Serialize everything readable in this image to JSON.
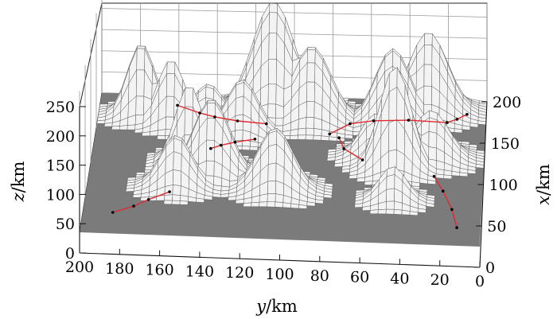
{
  "chart_data": {
    "type": "surface3d",
    "axes": {
      "x": {
        "symbol": "x",
        "unit": "/km",
        "range": [
          0,
          200
        ],
        "ticks": [
          "0",
          "50",
          "100",
          "150",
          "200"
        ]
      },
      "y": {
        "symbol": "y",
        "unit": "/km",
        "range": [
          0,
          200
        ],
        "ticks": [
          "0",
          "20",
          "40",
          "60",
          "80",
          "100",
          "120",
          "140",
          "160",
          "180",
          "200"
        ]
      },
      "z": {
        "symbol": "z",
        "unit": "/km",
        "range": [
          0,
          250
        ],
        "ticks": [
          "0",
          "50",
          "100",
          "150",
          "200",
          "250"
        ]
      }
    },
    "grid": true,
    "surface_color": "#7b7b7b",
    "path_color": "#e0282e",
    "peaks": [
      {
        "x": 170,
        "y": 178,
        "z": 165,
        "sigma": 7
      },
      {
        "x": 160,
        "y": 162,
        "z": 140,
        "sigma": 7
      },
      {
        "x": 162,
        "y": 143,
        "z": 85,
        "sigma": 8
      },
      {
        "x": 150,
        "y": 125,
        "z": 115,
        "sigma": 8
      },
      {
        "x": 180,
        "y": 110,
        "z": 250,
        "sigma": 11
      },
      {
        "x": 170,
        "y": 90,
        "z": 165,
        "sigma": 10
      },
      {
        "x": 170,
        "y": 48,
        "z": 165,
        "sigma": 9
      },
      {
        "x": 185,
        "y": 30,
        "z": 185,
        "sigma": 10
      },
      {
        "x": 120,
        "y": 55,
        "z": 90,
        "sigma": 8
      },
      {
        "x": 120,
        "y": 27,
        "z": 100,
        "sigma": 9
      },
      {
        "x": 105,
        "y": 45,
        "z": 210,
        "sigma": 8
      },
      {
        "x": 105,
        "y": 150,
        "z": 160,
        "sigma": 7
      },
      {
        "x": 90,
        "y": 138,
        "z": 150,
        "sigma": 9
      },
      {
        "x": 70,
        "y": 155,
        "z": 100,
        "sigma": 8
      },
      {
        "x": 70,
        "y": 105,
        "z": 120,
        "sigma": 9
      },
      {
        "x": 60,
        "y": 45,
        "z": 65,
        "sigma": 7
      }
    ],
    "paths": [
      {
        "points": [
          [
            185,
            160
          ],
          [
            175,
            148
          ],
          [
            170,
            140
          ],
          [
            165,
            128
          ],
          [
            162,
            113
          ]
        ]
      },
      {
        "points": [
          [
            140,
            118
          ],
          [
            135,
            128
          ],
          [
            130,
            135
          ],
          [
            125,
            140
          ]
        ]
      },
      {
        "points": [
          [
            150,
            80
          ],
          [
            165,
            70
          ],
          [
            170,
            58
          ],
          [
            172,
            40
          ],
          [
            170,
            20
          ],
          [
            175,
            15
          ],
          [
            182,
            10
          ]
        ]
      },
      {
        "points": [
          [
            145,
            75
          ],
          [
            130,
            72
          ],
          [
            115,
            62
          ]
        ]
      },
      {
        "points": [
          [
            95,
            25
          ],
          [
            75,
            20
          ],
          [
            50,
            15
          ],
          [
            25,
            12
          ]
        ]
      },
      {
        "points": [
          [
            30,
            185
          ],
          [
            40,
            175
          ],
          [
            50,
            168
          ],
          [
            62,
            158
          ]
        ]
      }
    ]
  }
}
